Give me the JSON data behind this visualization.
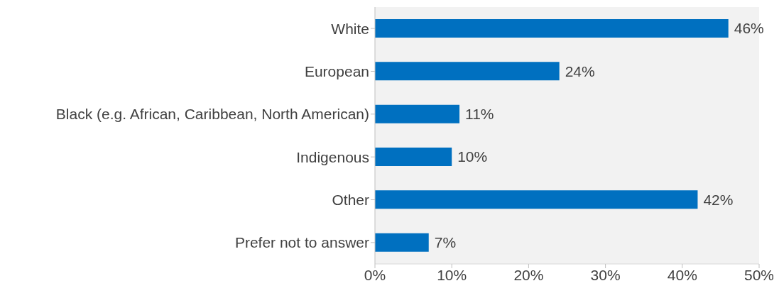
{
  "chart_data": {
    "type": "bar",
    "orientation": "horizontal",
    "categories": [
      "White",
      "European",
      "Black (e.g. African, Caribbean, North American)",
      "Indigenous",
      "Other",
      "Prefer not to answer"
    ],
    "values": [
      46,
      24,
      11,
      10,
      42,
      7
    ],
    "value_labels": [
      "46%",
      "24%",
      "11%",
      "10%",
      "42%",
      "7%"
    ],
    "color": "#0070c0",
    "xlim": [
      0,
      50
    ],
    "xticks": [
      {
        "value": 0,
        "label": "0%"
      },
      {
        "value": 10,
        "label": "10%"
      },
      {
        "value": 20,
        "label": "20%"
      },
      {
        "value": 30,
        "label": "30%"
      },
      {
        "value": 40,
        "label": "40%"
      },
      {
        "value": 50,
        "label": "50%"
      }
    ],
    "grid": false,
    "legend": false
  }
}
